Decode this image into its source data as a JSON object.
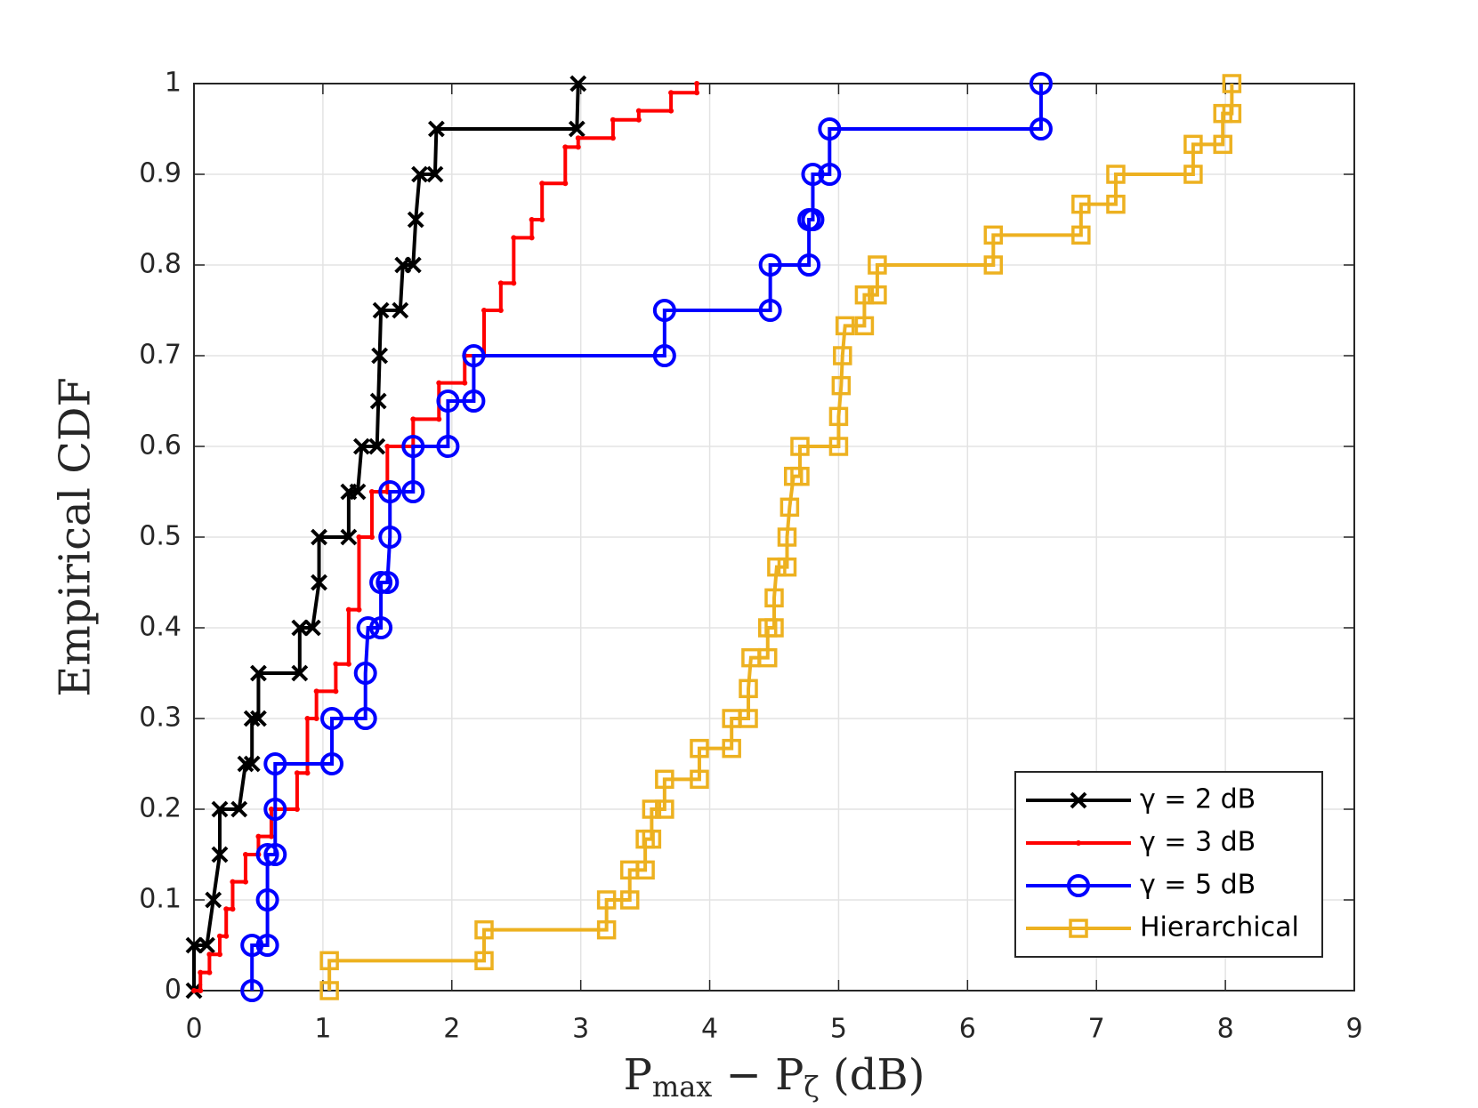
{
  "chart_data": {
    "type": "line",
    "xlabel": [
      {
        "text": "P"
      },
      {
        "text": "max",
        "sub": true
      },
      {
        "text": " − P"
      },
      {
        "text": "ζ",
        "sub": true
      },
      {
        "text": " (dB)"
      }
    ],
    "ylabel": "Empirical CDF",
    "xlim": [
      0,
      9
    ],
    "ylim": [
      0,
      1
    ],
    "xticks": [
      0,
      1,
      2,
      3,
      4,
      5,
      6,
      7,
      8,
      9
    ],
    "yticks": [
      0,
      0.1,
      0.2,
      0.3,
      0.4,
      0.5,
      0.6,
      0.7,
      0.8,
      0.9,
      1
    ],
    "grid": true,
    "legend": "southeast",
    "series": [
      {
        "name": "γ = 2 dB",
        "color": "#000000",
        "marker": "x",
        "x": [
          0,
          0,
          0.1,
          0.15,
          0.2,
          0.2,
          0.35,
          0.4,
          0.45,
          0.45,
          0.5,
          0.5,
          0.82,
          0.82,
          0.92,
          0.97,
          0.97,
          1.2,
          1.2,
          1.27,
          1.3,
          1.42,
          1.43,
          1.44,
          1.45,
          1.6,
          1.62,
          1.7,
          1.72,
          1.75,
          1.87,
          1.88,
          2.97,
          2.98
        ],
        "values": [
          0,
          0.05,
          0.05,
          0.1,
          0.15,
          0.2,
          0.2,
          0.25,
          0.25,
          0.3,
          0.3,
          0.35,
          0.35,
          0.4,
          0.4,
          0.45,
          0.5,
          0.5,
          0.55,
          0.55,
          0.6,
          0.6,
          0.65,
          0.7,
          0.75,
          0.75,
          0.8,
          0.8,
          0.85,
          0.9,
          0.9,
          0.95,
          0.95,
          1
        ]
      },
      {
        "name": "γ = 3 dB",
        "color": "#ff0000",
        "marker": ".",
        "x": [
          0,
          0.05,
          0.05,
          0.12,
          0.12,
          0.2,
          0.2,
          0.25,
          0.25,
          0.3,
          0.3,
          0.4,
          0.4,
          0.5,
          0.5,
          0.6,
          0.6,
          0.8,
          0.8,
          0.88,
          0.88,
          0.95,
          0.95,
          1.1,
          1.1,
          1.2,
          1.2,
          1.28,
          1.28,
          1.38,
          1.38,
          1.5,
          1.5,
          1.7,
          1.7,
          1.9,
          1.9,
          2.1,
          2.1,
          2.25,
          2.25,
          2.38,
          2.38,
          2.48,
          2.48,
          2.62,
          2.62,
          2.7,
          2.7,
          2.88,
          2.88,
          2.98,
          2.98,
          3.25,
          3.25,
          3.45,
          3.45,
          3.7,
          3.7,
          3.9,
          3.9
        ],
        "values": [
          0,
          0,
          0.02,
          0.02,
          0.04,
          0.04,
          0.06,
          0.06,
          0.09,
          0.09,
          0.12,
          0.12,
          0.15,
          0.15,
          0.17,
          0.17,
          0.2,
          0.2,
          0.24,
          0.24,
          0.3,
          0.3,
          0.33,
          0.33,
          0.36,
          0.36,
          0.42,
          0.42,
          0.5,
          0.5,
          0.55,
          0.55,
          0.6,
          0.6,
          0.63,
          0.63,
          0.67,
          0.67,
          0.7,
          0.7,
          0.75,
          0.75,
          0.78,
          0.78,
          0.83,
          0.83,
          0.85,
          0.85,
          0.89,
          0.89,
          0.93,
          0.93,
          0.94,
          0.94,
          0.96,
          0.96,
          0.97,
          0.97,
          0.99,
          0.99,
          1
        ]
      },
      {
        "name": "γ = 5 dB",
        "color": "#0000ff",
        "marker": "o",
        "x": [
          0.45,
          0.45,
          0.57,
          0.57,
          0.57,
          0.63,
          0.63,
          0.63,
          1.07,
          1.07,
          1.33,
          1.33,
          1.35,
          1.45,
          1.45,
          1.5,
          1.52,
          1.52,
          1.7,
          1.7,
          1.97,
          1.97,
          2.17,
          2.17,
          3.65,
          3.65,
          4.47,
          4.47,
          4.77,
          4.77,
          4.8,
          4.8,
          4.93,
          4.93,
          6.57,
          6.57
        ],
        "values": [
          0,
          0.05,
          0.05,
          0.1,
          0.15,
          0.15,
          0.2,
          0.25,
          0.25,
          0.3,
          0.3,
          0.35,
          0.4,
          0.4,
          0.45,
          0.45,
          0.5,
          0.55,
          0.55,
          0.6,
          0.6,
          0.65,
          0.65,
          0.7,
          0.7,
          0.75,
          0.75,
          0.8,
          0.8,
          0.85,
          0.85,
          0.9,
          0.9,
          0.95,
          0.95,
          1
        ]
      },
      {
        "name": "Hierarchical",
        "color": "#edb120",
        "marker": "s",
        "x": [
          1.05,
          1.05,
          2.25,
          2.25,
          3.2,
          3.2,
          3.38,
          3.38,
          3.5,
          3.5,
          3.55,
          3.55,
          3.65,
          3.65,
          3.92,
          3.92,
          4.17,
          4.17,
          4.3,
          4.3,
          4.32,
          4.45,
          4.45,
          4.5,
          4.5,
          4.52,
          4.6,
          4.6,
          4.62,
          4.65,
          4.7,
          4.7,
          5.0,
          5.0,
          5.02,
          5.03,
          5.05,
          5.2,
          5.2,
          5.3,
          5.3,
          6.2,
          6.2,
          6.88,
          6.88,
          7.15,
          7.15,
          7.75,
          7.75,
          7.98,
          7.98,
          8.05,
          8.05
        ],
        "values": [
          0,
          0.033,
          0.033,
          0.067,
          0.067,
          0.1,
          0.1,
          0.133,
          0.133,
          0.167,
          0.167,
          0.2,
          0.2,
          0.233,
          0.233,
          0.267,
          0.267,
          0.3,
          0.3,
          0.333,
          0.367,
          0.367,
          0.4,
          0.4,
          0.433,
          0.467,
          0.467,
          0.5,
          0.533,
          0.567,
          0.567,
          0.6,
          0.6,
          0.633,
          0.667,
          0.7,
          0.733,
          0.733,
          0.767,
          0.767,
          0.8,
          0.8,
          0.833,
          0.833,
          0.867,
          0.867,
          0.9,
          0.9,
          0.933,
          0.933,
          0.967,
          0.967,
          1
        ]
      }
    ]
  }
}
